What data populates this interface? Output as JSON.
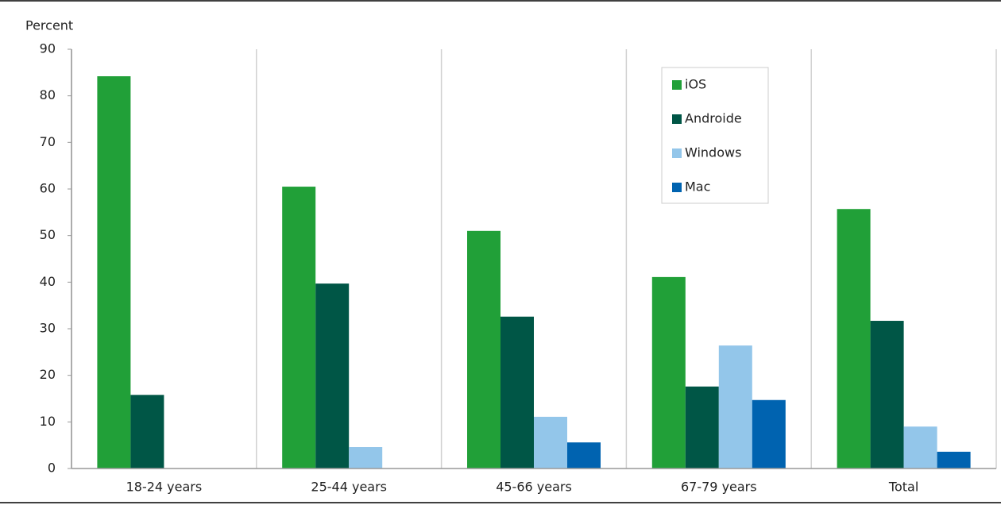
{
  "chart_data": {
    "type": "bar",
    "y_label": "Percent",
    "categories": [
      "18-24 years",
      "25-44 years",
      "45-66 years",
      "67-79 years",
      "Total"
    ],
    "series": [
      {
        "name": "iOS",
        "color": "#21a038",
        "values": [
          84.2,
          60.5,
          51.0,
          41.1,
          55.7
        ]
      },
      {
        "name": "Androide",
        "color": "#005646",
        "values": [
          15.8,
          39.7,
          32.6,
          17.6,
          31.7
        ]
      },
      {
        "name": "Windows",
        "color": "#93c6ea",
        "values": [
          0,
          4.6,
          11.1,
          26.4,
          9.0
        ]
      },
      {
        "name": "Mac",
        "color": "#0063b0",
        "values": [
          0,
          0,
          5.6,
          14.7,
          3.6
        ]
      }
    ],
    "ylim": [
      0,
      90
    ],
    "yticks": [
      0,
      10,
      20,
      30,
      40,
      50,
      60,
      70,
      80,
      90
    ],
    "legend": "top-right"
  }
}
